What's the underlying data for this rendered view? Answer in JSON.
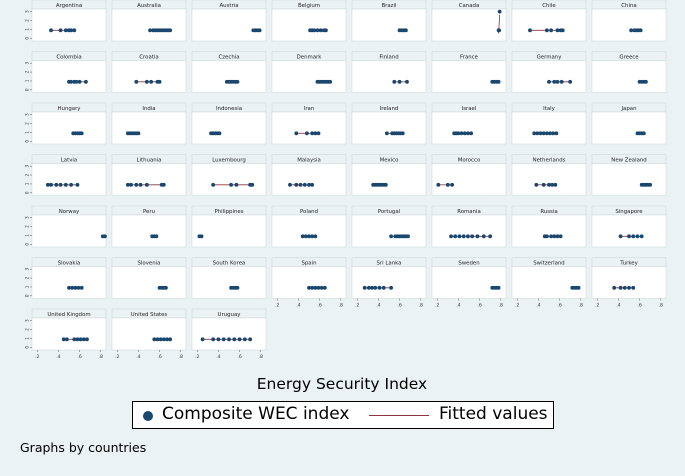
{
  "chart_data": {
    "type": "scatter",
    "layout": "small-multiples",
    "xlabel": "Energy Security Index",
    "x_ticks": [
      ".2",
      ".4",
      ".6",
      ".8"
    ],
    "xlim": [
      0.15,
      0.85
    ],
    "y_ticks": [
      "0",
      "1",
      "2",
      "3"
    ],
    "ylim": [
      -0.3,
      3.3
    ],
    "legend": {
      "position": "bottom",
      "items": [
        {
          "label": "Composite WEC index",
          "marker": "dot",
          "color": "#1a476f"
        },
        {
          "label": "Fitted values",
          "marker": "line",
          "color": "#90353b"
        }
      ]
    },
    "note": "Graphs by countries",
    "series_name": "Composite WEC index",
    "fit_name": "Fitted values",
    "colors": {
      "dot": "#1a476f",
      "fit": "#90353b",
      "plot_bg": "#ffffff",
      "strip_bg": "#eaf2f3",
      "outer_bg": "#eaf2f3"
    },
    "panels": [
      {
        "country": "Argentina",
        "x": [
          0.33,
          0.42,
          0.47,
          0.5,
          0.52,
          0.55
        ],
        "y": [
          0.9,
          0.9,
          0.9,
          0.9,
          0.9,
          0.9
        ]
      },
      {
        "country": "Australia",
        "x": [
          0.51,
          0.54,
          0.56,
          0.58,
          0.6,
          0.62,
          0.64,
          0.66,
          0.68,
          0.7
        ],
        "y": [
          0.9,
          0.9,
          0.9,
          0.9,
          0.9,
          0.9,
          0.9,
          0.9,
          0.9,
          0.9
        ]
      },
      {
        "country": "Austria",
        "x": [
          0.73,
          0.75,
          0.77,
          0.79
        ],
        "y": [
          0.9,
          0.9,
          0.9,
          0.9
        ]
      },
      {
        "country": "Belgium",
        "x": [
          0.51,
          0.53,
          0.55,
          0.58,
          0.61,
          0.64,
          0.66
        ],
        "y": [
          0.9,
          0.9,
          0.9,
          0.9,
          0.9,
          0.9,
          0.9
        ]
      },
      {
        "country": "Brazil",
        "x": [
          0.6,
          0.62,
          0.64,
          0.66
        ],
        "y": [
          0.9,
          0.9,
          0.9,
          0.9
        ]
      },
      {
        "country": "Canada",
        "x": [
          0.78,
          0.785,
          0.79
        ],
        "y": [
          0.9,
          0.9,
          3.0
        ]
      },
      {
        "country": "Chile",
        "x": [
          0.32,
          0.48,
          0.52,
          0.58,
          0.61,
          0.63
        ],
        "y": [
          0.9,
          0.9,
          0.9,
          0.9,
          0.9,
          0.9
        ]
      },
      {
        "country": "China",
        "x": [
          0.52,
          0.55,
          0.57,
          0.59,
          0.61
        ],
        "y": [
          0.9,
          0.9,
          0.9,
          0.9,
          0.9
        ]
      },
      {
        "country": "Colombia",
        "x": [
          0.5,
          0.52,
          0.55,
          0.57,
          0.6,
          0.66
        ],
        "y": [
          0.9,
          0.9,
          0.9,
          0.9,
          0.9,
          0.9
        ]
      },
      {
        "country": "Croatia",
        "x": [
          0.38,
          0.48,
          0.52,
          0.58,
          0.6
        ],
        "y": [
          0.9,
          0.9,
          0.9,
          0.9,
          0.9
        ]
      },
      {
        "country": "Czechia",
        "x": [
          0.48,
          0.5,
          0.52,
          0.54,
          0.56,
          0.58
        ],
        "y": [
          0.9,
          0.9,
          0.9,
          0.9,
          0.9,
          0.9
        ]
      },
      {
        "country": "Denmark",
        "x": [
          0.58,
          0.6,
          0.62,
          0.64,
          0.66,
          0.68,
          0.7
        ],
        "y": [
          0.9,
          0.9,
          0.9,
          0.9,
          0.9,
          0.9,
          0.9
        ]
      },
      {
        "country": "Finland",
        "x": [
          0.55,
          0.6,
          0.67
        ],
        "y": [
          0.9,
          0.9,
          0.9
        ]
      },
      {
        "country": "France",
        "x": [
          0.72,
          0.74,
          0.76,
          0.78
        ],
        "y": [
          0.9,
          0.9,
          0.9,
          0.9
        ]
      },
      {
        "country": "Germany",
        "x": [
          0.5,
          0.55,
          0.58,
          0.62,
          0.7
        ],
        "y": [
          0.9,
          0.9,
          0.9,
          0.9,
          0.9
        ]
      },
      {
        "country": "Greece",
        "x": [
          0.6,
          0.62,
          0.64,
          0.66
        ],
        "y": [
          0.9,
          0.9,
          0.9,
          0.9
        ]
      },
      {
        "country": "Hungary",
        "x": [
          0.54,
          0.56,
          0.58,
          0.6,
          0.62
        ],
        "y": [
          0.9,
          0.9,
          0.9,
          0.9,
          0.9
        ]
      },
      {
        "country": "India",
        "x": [
          0.3,
          0.32,
          0.34,
          0.36,
          0.38,
          0.4
        ],
        "y": [
          0.9,
          0.9,
          0.9,
          0.9,
          0.9,
          0.9
        ]
      },
      {
        "country": "Indonesia",
        "x": [
          0.33,
          0.35,
          0.37,
          0.39,
          0.41
        ],
        "y": [
          0.9,
          0.9,
          0.9,
          0.9,
          0.9
        ]
      },
      {
        "country": "Iran",
        "x": [
          0.38,
          0.48,
          0.53,
          0.56,
          0.59
        ],
        "y": [
          0.9,
          0.9,
          0.9,
          0.9,
          0.9
        ]
      },
      {
        "country": "Ireland",
        "x": [
          0.48,
          0.53,
          0.55,
          0.57,
          0.59,
          0.61,
          0.63
        ],
        "y": [
          0.9,
          0.9,
          0.9,
          0.9,
          0.9,
          0.9,
          0.9
        ]
      },
      {
        "country": "Israel",
        "x": [
          0.36,
          0.38,
          0.4,
          0.43,
          0.46,
          0.49,
          0.52
        ],
        "y": [
          0.9,
          0.9,
          0.9,
          0.9,
          0.9,
          0.9,
          0.9
        ]
      },
      {
        "country": "Italy",
        "x": [
          0.36,
          0.39,
          0.42,
          0.45,
          0.48,
          0.51,
          0.54,
          0.57
        ],
        "y": [
          0.9,
          0.9,
          0.9,
          0.9,
          0.9,
          0.9,
          0.9,
          0.9
        ]
      },
      {
        "country": "Japan",
        "x": [
          0.58,
          0.6,
          0.62,
          0.64
        ],
        "y": [
          0.9,
          0.9,
          0.9,
          0.9
        ]
      },
      {
        "country": "Latvia",
        "x": [
          0.3,
          0.33,
          0.38,
          0.42,
          0.47,
          0.52,
          0.58
        ],
        "y": [
          0.9,
          0.9,
          0.9,
          0.9,
          0.9,
          0.9,
          0.9
        ]
      },
      {
        "country": "Lithuania",
        "x": [
          0.3,
          0.33,
          0.38,
          0.42,
          0.48,
          0.62,
          0.64
        ],
        "y": [
          0.9,
          0.9,
          0.9,
          0.9,
          0.9,
          0.9,
          0.9
        ]
      },
      {
        "country": "Luxembourg",
        "x": [
          0.35,
          0.52,
          0.57,
          0.7,
          0.72
        ],
        "y": [
          0.9,
          0.9,
          0.9,
          0.9,
          0.9
        ]
      },
      {
        "country": "Malaysia",
        "x": [
          0.32,
          0.38,
          0.42,
          0.46,
          0.5,
          0.53
        ],
        "y": [
          0.9,
          0.9,
          0.9,
          0.9,
          0.9,
          0.9
        ]
      },
      {
        "country": "Mexico",
        "x": [
          0.35,
          0.37,
          0.39,
          0.41,
          0.43,
          0.45,
          0.47
        ],
        "y": [
          0.9,
          0.9,
          0.9,
          0.9,
          0.9,
          0.9,
          0.9
        ]
      },
      {
        "country": "Morocco",
        "x": [
          0.21,
          0.3,
          0.34
        ],
        "y": [
          0.9,
          0.9,
          0.9
        ]
      },
      {
        "country": "Netherlands",
        "x": [
          0.38,
          0.45,
          0.5,
          0.53,
          0.56
        ],
        "y": [
          0.9,
          0.9,
          0.9,
          0.9,
          0.9
        ]
      },
      {
        "country": "New Zealand",
        "x": [
          0.62,
          0.64,
          0.66,
          0.68,
          0.7
        ],
        "y": [
          0.9,
          0.9,
          0.9,
          0.9,
          0.9
        ]
      },
      {
        "country": "Norway",
        "x": [
          0.82,
          0.84
        ],
        "y": [
          0.9,
          0.9
        ]
      },
      {
        "country": "Peru",
        "x": [
          0.53,
          0.55,
          0.57
        ],
        "y": [
          0.9,
          0.9,
          0.9
        ]
      },
      {
        "country": "Philippines",
        "x": [
          0.22,
          0.24
        ],
        "y": [
          0.9,
          0.9
        ]
      },
      {
        "country": "Poland",
        "x": [
          0.44,
          0.47,
          0.5,
          0.53,
          0.56
        ],
        "y": [
          0.9,
          0.9,
          0.9,
          0.9,
          0.9
        ]
      },
      {
        "country": "Portugal",
        "x": [
          0.52,
          0.56,
          0.58,
          0.6,
          0.62,
          0.64,
          0.66,
          0.68
        ],
        "y": [
          0.9,
          0.9,
          0.9,
          0.9,
          0.9,
          0.9,
          0.9,
          0.9
        ]
      },
      {
        "country": "Romania",
        "x": [
          0.33,
          0.37,
          0.41,
          0.45,
          0.49,
          0.53,
          0.58,
          0.64,
          0.7
        ],
        "y": [
          0.9,
          0.9,
          0.9,
          0.9,
          0.9,
          0.9,
          0.9,
          0.9,
          0.9
        ]
      },
      {
        "country": "Russia",
        "x": [
          0.46,
          0.48,
          0.52,
          0.55,
          0.58,
          0.61
        ],
        "y": [
          0.9,
          0.9,
          0.9,
          0.9,
          0.9,
          0.9
        ]
      },
      {
        "country": "Singapore",
        "x": [
          0.42,
          0.5,
          0.54,
          0.58,
          0.62
        ],
        "y": [
          0.9,
          0.9,
          0.9,
          0.9,
          0.9
        ]
      },
      {
        "country": "Slovakia",
        "x": [
          0.5,
          0.53,
          0.56,
          0.59,
          0.62
        ],
        "y": [
          0.9,
          0.9,
          0.9,
          0.9,
          0.9
        ]
      },
      {
        "country": "Slovenia",
        "x": [
          0.6,
          0.62,
          0.64,
          0.66
        ],
        "y": [
          0.9,
          0.9,
          0.9,
          0.9
        ]
      },
      {
        "country": "South Korea",
        "x": [
          0.52,
          0.54,
          0.56,
          0.58
        ],
        "y": [
          0.9,
          0.9,
          0.9,
          0.9
        ]
      },
      {
        "country": "Spain",
        "x": [
          0.5,
          0.53,
          0.56,
          0.59,
          0.62,
          0.65
        ],
        "y": [
          0.9,
          0.9,
          0.9,
          0.9,
          0.9,
          0.9
        ]
      },
      {
        "country": "Sri Lanka",
        "x": [
          0.27,
          0.31,
          0.34,
          0.37,
          0.41,
          0.45,
          0.52
        ],
        "y": [
          0.9,
          0.9,
          0.9,
          0.9,
          0.9,
          0.9,
          0.9
        ]
      },
      {
        "country": "Sweden",
        "x": [
          0.72,
          0.74,
          0.76,
          0.78
        ],
        "y": [
          0.9,
          0.9,
          0.9,
          0.9
        ]
      },
      {
        "country": "Switzerland",
        "x": [
          0.72,
          0.74,
          0.76,
          0.78
        ],
        "y": [
          0.9,
          0.9,
          0.9,
          0.9
        ]
      },
      {
        "country": "Turkey",
        "x": [
          0.36,
          0.42,
          0.46,
          0.5,
          0.54
        ],
        "y": [
          0.9,
          0.9,
          0.9,
          0.9,
          0.9
        ]
      },
      {
        "country": "United Kingdom",
        "x": [
          0.45,
          0.48,
          0.55,
          0.58,
          0.61,
          0.64,
          0.67
        ],
        "y": [
          0.9,
          0.9,
          0.9,
          0.9,
          0.9,
          0.9,
          0.9
        ]
      },
      {
        "country": "United States",
        "x": [
          0.55,
          0.58,
          0.61,
          0.64,
          0.67,
          0.7
        ],
        "y": [
          0.9,
          0.9,
          0.9,
          0.9,
          0.9,
          0.9
        ]
      },
      {
        "country": "Uruguay",
        "x": [
          0.25,
          0.35,
          0.4,
          0.45,
          0.5,
          0.55,
          0.6,
          0.65,
          0.7
        ],
        "y": [
          0.9,
          0.9,
          0.9,
          0.9,
          0.9,
          0.9,
          0.9,
          0.9,
          0.9
        ]
      }
    ]
  }
}
